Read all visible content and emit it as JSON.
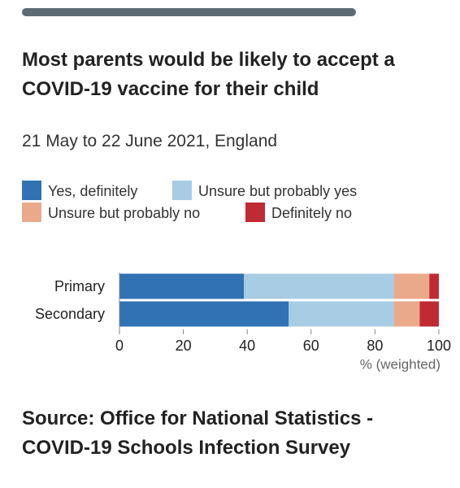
{
  "chart_data": {
    "type": "stacked-barh",
    "title": "Most parents would be likely to accept a COVID-19 vaccine for their child",
    "subtitle": "21 May to 22 June 2021, England",
    "categories": [
      "Primary",
      "Secondary"
    ],
    "series": [
      {
        "name": "Yes, definitely",
        "color": "#3072b3",
        "values": [
          39,
          53
        ]
      },
      {
        "name": "Unsure but probably yes",
        "color": "#a8cce3",
        "values": [
          47,
          33
        ]
      },
      {
        "name": "Unsure but probably no",
        "color": "#eba98c",
        "values": [
          11,
          8
        ]
      },
      {
        "name": "Definitely no",
        "color": "#c02a33",
        "values": [
          3,
          6
        ]
      }
    ],
    "xlim": [
      0,
      100
    ],
    "xticks": [
      0,
      20,
      40,
      60,
      80,
      100
    ],
    "xlabel": "% (weighted)",
    "grid": false,
    "source": "Source: Office for National Statistics - COVID-19 Schools Infection Survey"
  }
}
